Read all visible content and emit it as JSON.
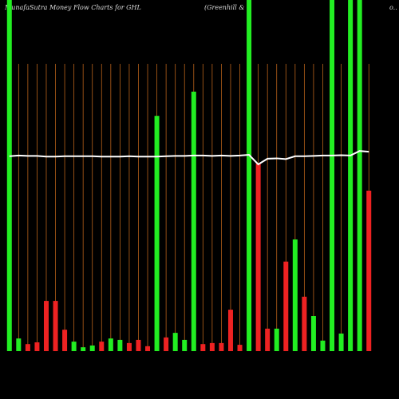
{
  "chart_data": {
    "type": "bar",
    "title": "MunafaSutra  Money Flow  Charts for GHL",
    "subtitle": "(Greenhill & C",
    "subtitle_tail": "o..",
    "categories": [
      null,
      null,
      null,
      null,
      null,
      null,
      null,
      null,
      null,
      null,
      null,
      null,
      null,
      null,
      null,
      null,
      null,
      null,
      null,
      null,
      null,
      null,
      null,
      null,
      null,
      null,
      null,
      null,
      null,
      null,
      null,
      null,
      null,
      null,
      null,
      null,
      null,
      null,
      null,
      null
    ],
    "values": [
      100,
      3.6,
      2,
      2.5,
      14.3,
      14.3,
      6.1,
      2.7,
      1.1,
      1.6,
      2.7,
      3.6,
      3.2,
      2.3,
      3.2,
      1.4,
      67,
      3.9,
      5.2,
      3.2,
      73.9,
      2,
      2.3,
      2.3,
      11.8,
      1.8,
      100,
      53.4,
      6.4,
      6.4,
      25.5,
      31.8,
      15.5,
      10,
      3,
      100,
      5,
      100,
      100,
      45.7
    ],
    "colors": [
      "#22ee22",
      "#22ee22",
      "#ee2222",
      "#ee2222",
      "#ee2222",
      "#ee2222",
      "#ee2222",
      "#22ee22",
      "#22ee22",
      "#22ee22",
      "#ee2222",
      "#22ee22",
      "#22ee22",
      "#ee2222",
      "#ee2222",
      "#ee2222",
      "#22ee22",
      "#ee2222",
      "#22ee22",
      "#22ee22",
      "#22ee22",
      "#ee2222",
      "#ee2222",
      "#ee2222",
      "#ee2222",
      "#ee2222",
      "#22ee22",
      "#ee2222",
      "#ee2222",
      "#22ee22",
      "#ee2222",
      "#22ee22",
      "#ee2222",
      "#22ee22",
      "#22ee22",
      "#22ee22",
      "#22ee22",
      "#22ee22",
      "#22ee22",
      "#ee2222"
    ],
    "line": {
      "color": "#ffffff",
      "values": [
        55.5,
        55.7,
        55.6,
        55.6,
        55.4,
        55.4,
        55.5,
        55.5,
        55.5,
        55.5,
        55.4,
        55.4,
        55.4,
        55.5,
        55.4,
        55.4,
        55.4,
        55.5,
        55.6,
        55.6,
        55.7,
        55.7,
        55.6,
        55.7,
        55.6,
        55.7,
        55.9,
        53.2,
        54.8,
        54.9,
        54.7,
        55.5,
        55.5,
        55.6,
        55.7,
        55.7,
        55.8,
        55.7,
        57,
        56.8
      ]
    },
    "ylim": [
      0,
      100
    ],
    "grid_color": "#b8621a"
  }
}
